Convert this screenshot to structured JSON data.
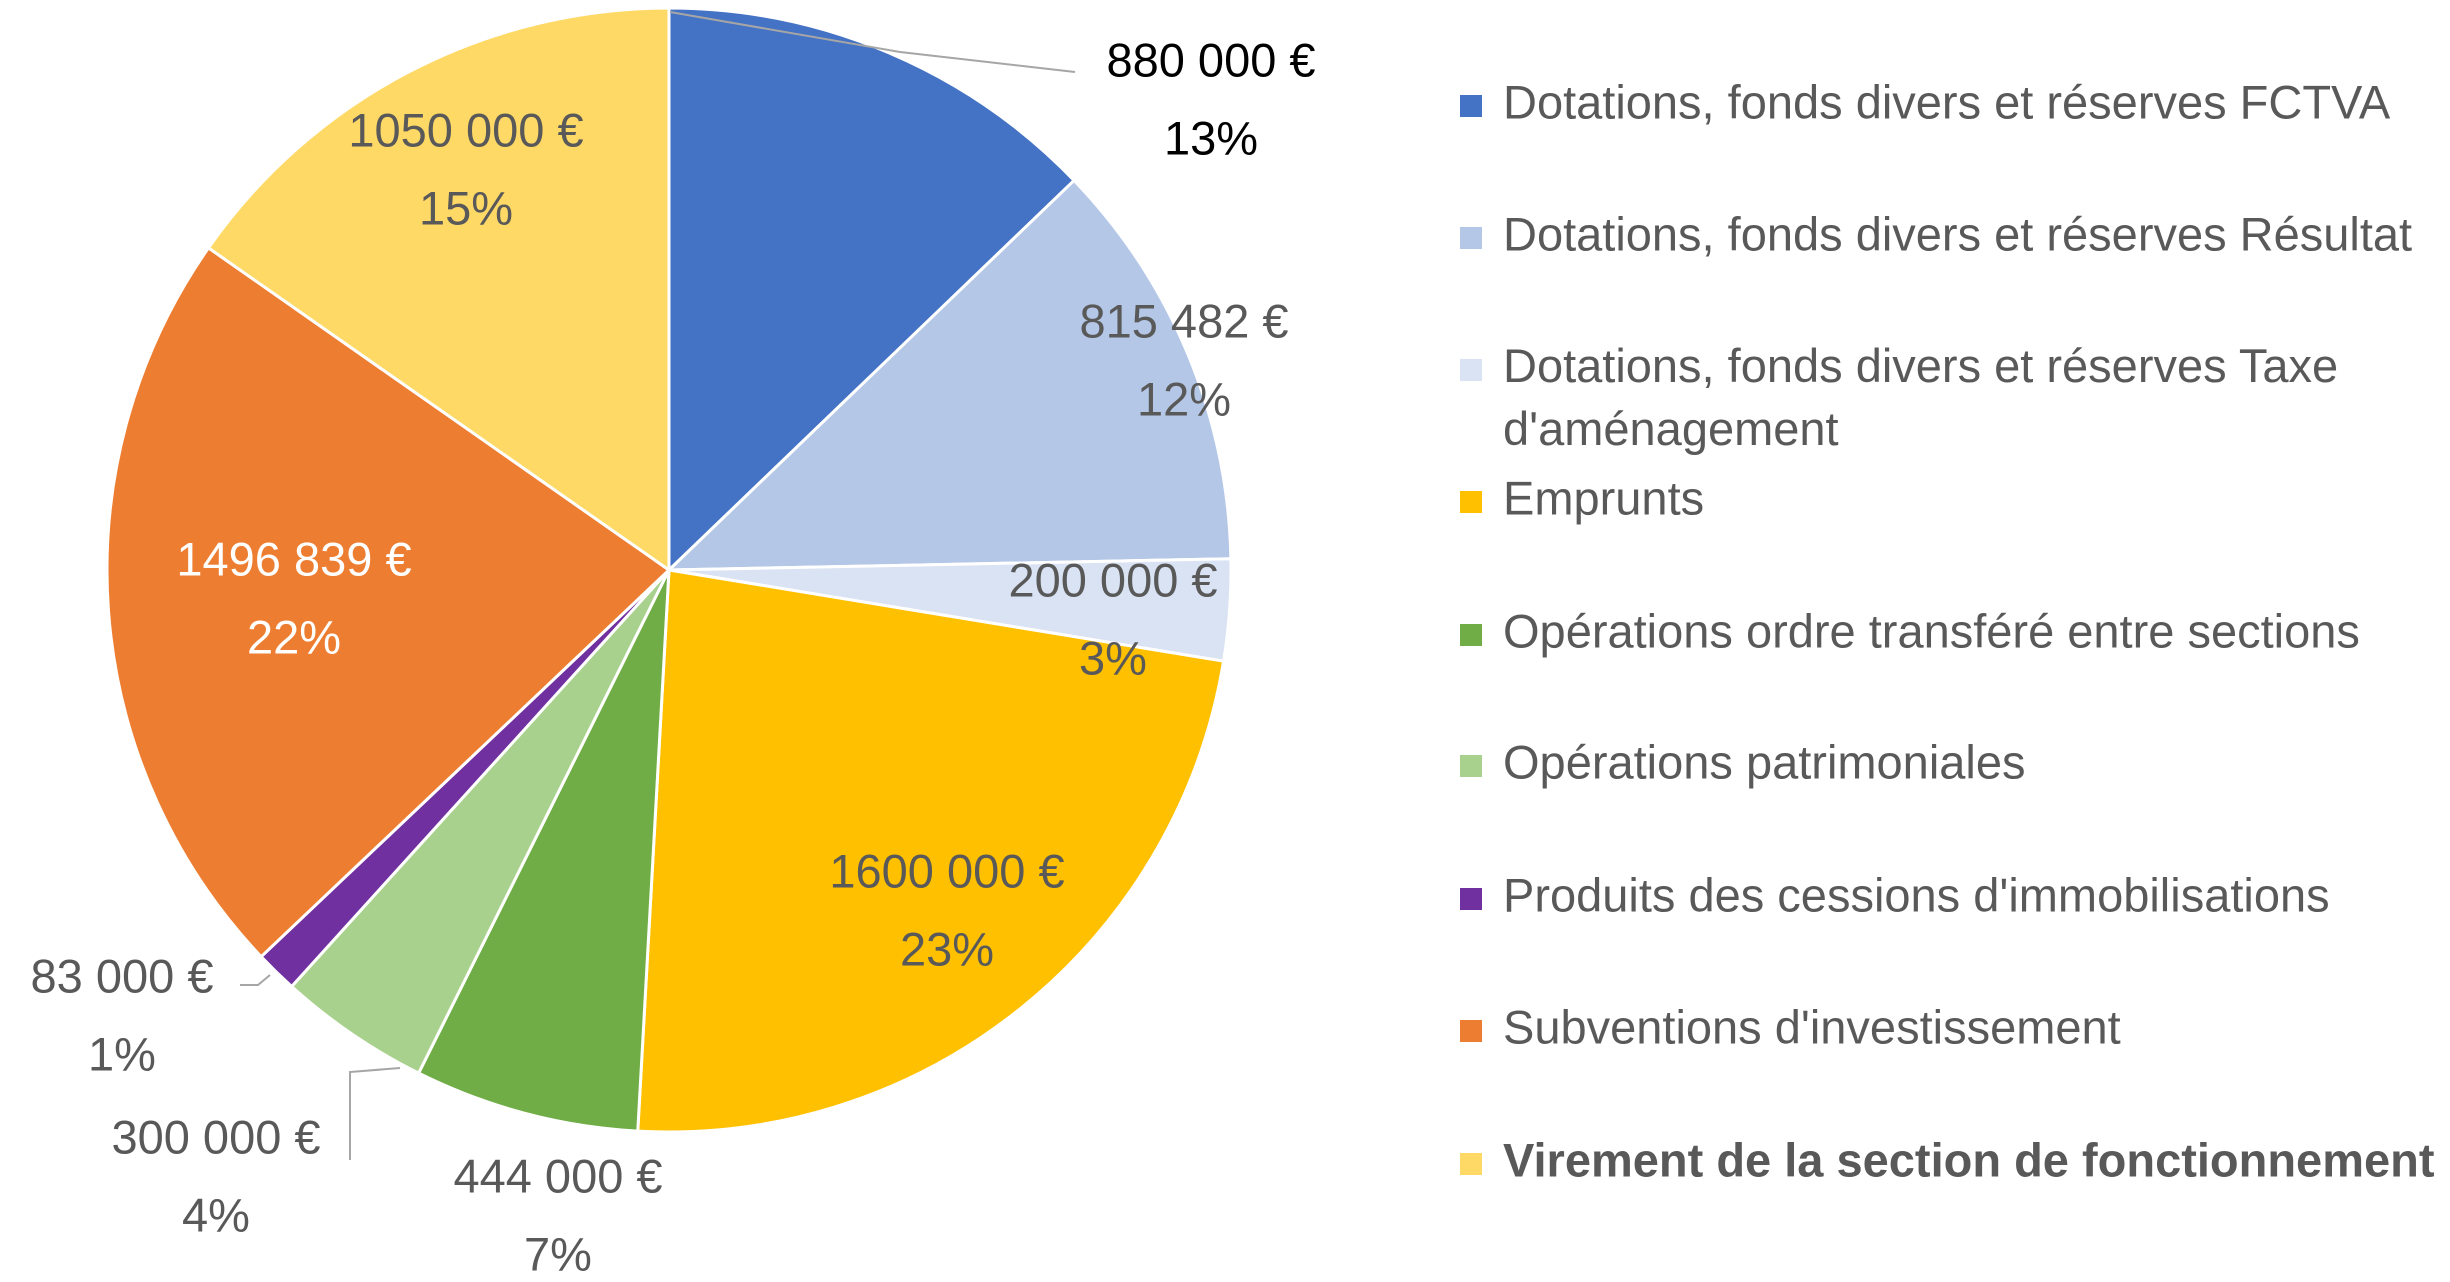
{
  "chart_data": {
    "type": "pie",
    "categories": [
      "Dotations, fonds divers et réserves FCTVA",
      "Dotations, fonds divers et réserves Résultat",
      "Dotations, fonds divers et réserves Taxe d'aménagement",
      "Emprunts",
      "Opérations ordre transféré entre sections",
      "Opérations patrimoniales",
      "Produits des cessions d'immobilisations",
      "Subventions d'investissement",
      "Virement de la section de fonctionnement"
    ],
    "values": [
      880000,
      815482,
      200000,
      1600000,
      444000,
      300000,
      83000,
      1496839,
      1050000
    ],
    "value_labels": [
      "880 000 €",
      "815 482 €",
      "200 000 €",
      "1600 000 €",
      "444 000 €",
      "300 000 €",
      "83 000 €",
      "1496 839 €",
      "1050 000 €"
    ],
    "percent_labels": [
      "13%",
      "12%",
      "3%",
      "23%",
      "7%",
      "4%",
      "1%",
      "22%",
      "15%"
    ],
    "colors": [
      "#4472c4",
      "#b4c7e7",
      "#dae3f3",
      "#ffc000",
      "#70ad47",
      "#a9d18e",
      "#7030a0",
      "#ed7d31",
      "#ffd966"
    ],
    "legend": "right"
  }
}
